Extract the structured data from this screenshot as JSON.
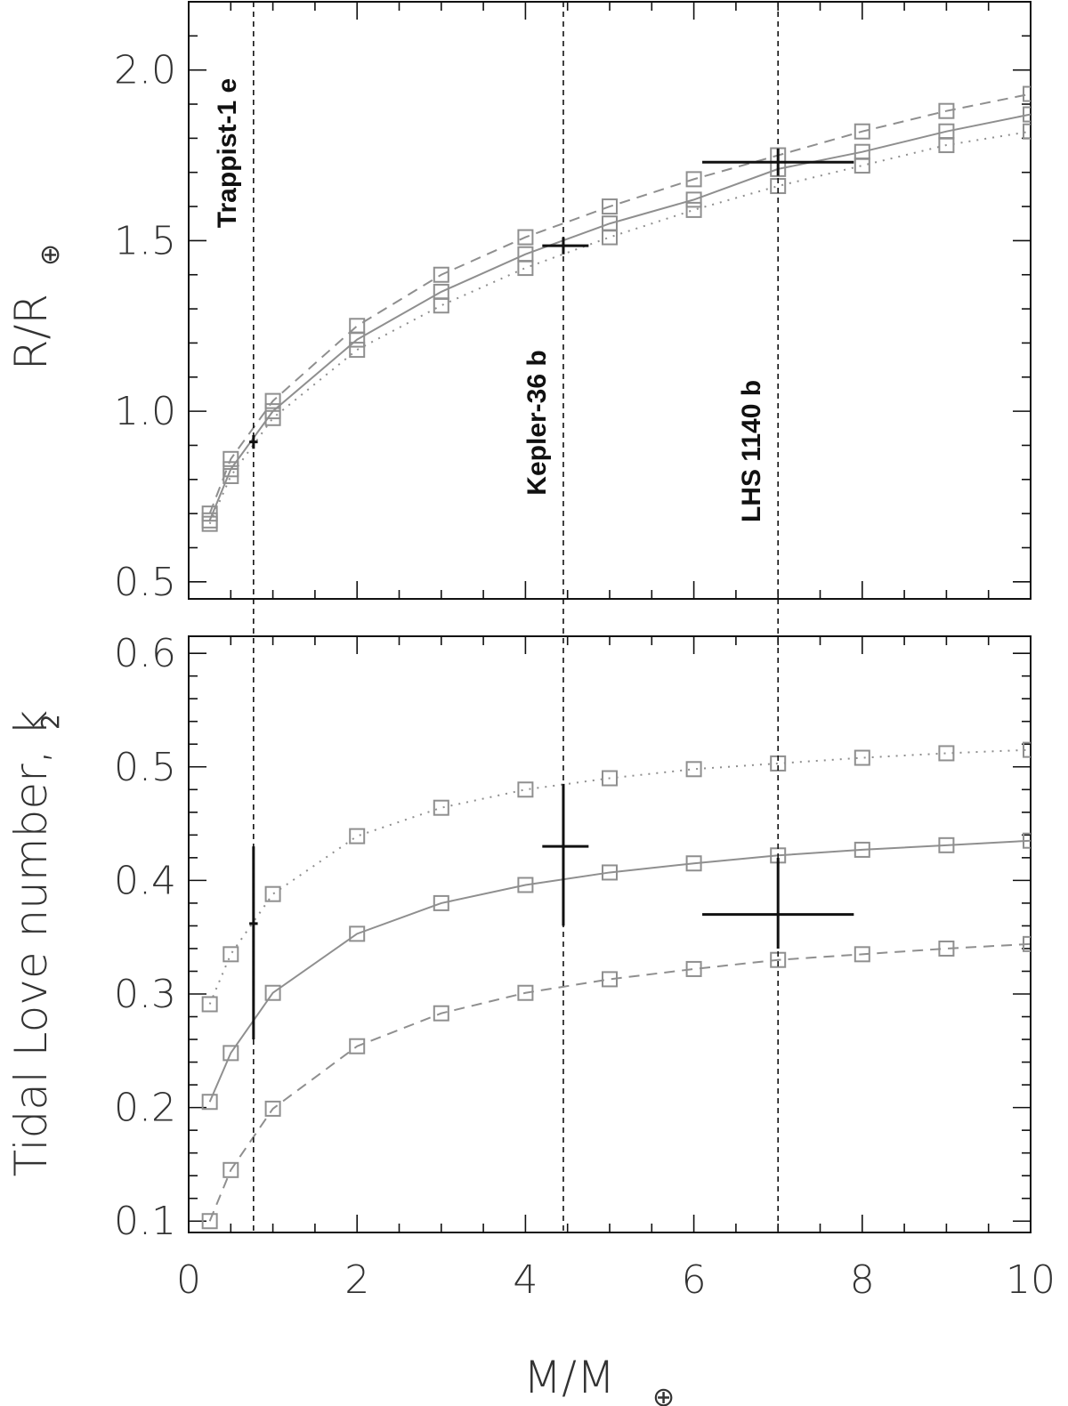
{
  "figure": {
    "x_axis_label": "M/M",
    "x_axis_label_subscript": "⊕",
    "colors": {
      "model": "#8f8f8f",
      "observation": "#111111",
      "frame": "#111111"
    }
  },
  "chart_data": [
    {
      "type": "line",
      "panel": "top",
      "ylabel": "R/R",
      "ylabel_subscript": "⊕",
      "xlim": [
        0,
        10
      ],
      "ylim": [
        0.45,
        2.2
      ],
      "x_tick_labels": [],
      "y_tick_labels": [
        "0.5",
        "1.0",
        "1.5",
        "2.0"
      ],
      "y_ticks": [
        0.5,
        1.0,
        1.5,
        2.0
      ],
      "grid": false,
      "x": [
        0.25,
        0.5,
        1,
        2,
        3,
        4,
        5,
        6,
        7,
        8,
        9,
        10
      ],
      "series": [
        {
          "style": "dashed",
          "values": [
            0.7,
            0.86,
            1.03,
            1.25,
            1.4,
            1.51,
            1.6,
            1.68,
            1.75,
            1.82,
            1.88,
            1.93
          ]
        },
        {
          "style": "solid",
          "values": [
            0.68,
            0.83,
            1.0,
            1.21,
            1.35,
            1.46,
            1.55,
            1.62,
            1.71,
            1.76,
            1.82,
            1.87
          ]
        },
        {
          "style": "dotted",
          "values": [
            0.67,
            0.81,
            0.98,
            1.18,
            1.31,
            1.42,
            1.51,
            1.59,
            1.66,
            1.72,
            1.78,
            1.82
          ]
        }
      ],
      "observations": [
        {
          "x": 0.77,
          "y": 0.91,
          "x_lo": 0.72,
          "x_hi": 0.82,
          "y_lo": 0.89,
          "y_hi": 0.93
        },
        {
          "x": 4.45,
          "y": 1.485,
          "x_lo": 4.2,
          "x_hi": 4.75,
          "y_lo": 1.46,
          "y_hi": 1.51
        },
        {
          "x": 7.0,
          "y": 1.73,
          "x_lo": 6.1,
          "x_hi": 7.9,
          "y_lo": 1.69,
          "y_hi": 1.77
        }
      ]
    },
    {
      "type": "line",
      "panel": "bottom",
      "ylabel": "Tidal Love number, k",
      "ylabel_subscript": "2",
      "xlim": [
        0,
        10
      ],
      "ylim": [
        0.09,
        0.615
      ],
      "x_tick_labels": [
        "0",
        "2",
        "4",
        "6",
        "8",
        "10"
      ],
      "x_ticks": [
        0,
        2,
        4,
        6,
        8,
        10
      ],
      "y_tick_labels": [
        "0.1",
        "0.2",
        "0.3",
        "0.4",
        "0.5",
        "0.6"
      ],
      "y_ticks": [
        0.1,
        0.2,
        0.3,
        0.4,
        0.5,
        0.6
      ],
      "grid": false,
      "x": [
        0.25,
        0.5,
        1,
        2,
        3,
        4,
        5,
        6,
        7,
        8,
        9,
        10
      ],
      "series": [
        {
          "style": "dotted",
          "values": [
            0.291,
            0.335,
            0.388,
            0.439,
            0.464,
            0.48,
            0.49,
            0.498,
            0.503,
            0.508,
            0.512,
            0.515
          ]
        },
        {
          "style": "solid",
          "values": [
            0.205,
            0.248,
            0.301,
            0.353,
            0.38,
            0.396,
            0.407,
            0.415,
            0.422,
            0.427,
            0.431,
            0.435
          ]
        },
        {
          "style": "dashed",
          "values": [
            0.1,
            0.145,
            0.199,
            0.254,
            0.283,
            0.301,
            0.313,
            0.322,
            0.33,
            0.335,
            0.34,
            0.344
          ]
        }
      ],
      "observations": [
        {
          "x": 0.77,
          "y": 0.362,
          "x_lo": 0.72,
          "x_hi": 0.82,
          "y_lo": 0.26,
          "y_hi": 0.43
        },
        {
          "x": 4.45,
          "y": 0.43,
          "x_lo": 4.2,
          "x_hi": 4.75,
          "y_lo": 0.36,
          "y_hi": 0.485
        },
        {
          "x": 7.0,
          "y": 0.37,
          "x_lo": 6.1,
          "x_hi": 7.9,
          "y_lo": 0.34,
          "y_hi": 0.42
        }
      ]
    }
  ],
  "planet_markers": [
    {
      "name": "Trappist-1 e",
      "mass": 0.77
    },
    {
      "name": "Kepler-36 b",
      "mass": 4.45
    },
    {
      "name": "LHS 1140 b",
      "mass": 7.0
    }
  ]
}
